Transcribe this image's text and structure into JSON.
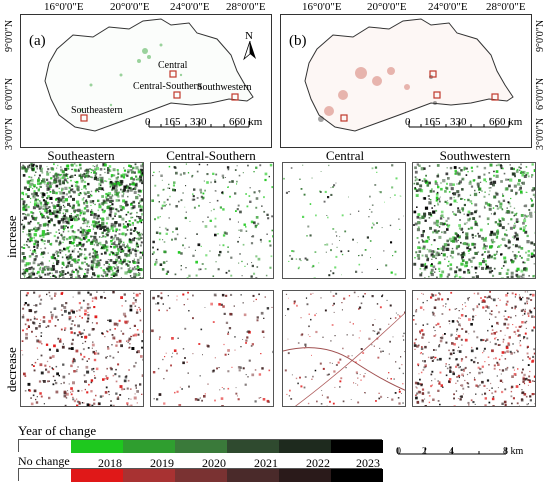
{
  "top_axis_labels": [
    "16°0'0\"E",
    "20°0'0\"E",
    "24°0'0\"E",
    "28°0'0\"E"
  ],
  "left_axis_labels": [
    "9°0'0\"N",
    "6°0'0\"N",
    "3°0'0\"N"
  ],
  "right_axis_labels": [
    "9°0'0\"N",
    "6°0'0\"N",
    "3°0'0\"N"
  ],
  "panel_a": {
    "letter": "(a)",
    "regions": [
      "Central",
      "Central-Southern",
      "Southwestern",
      "Southeastern"
    ]
  },
  "panel_b": {
    "letter": "(b)"
  },
  "north_arrow": "N",
  "scalebar_top": {
    "ticks": [
      "0",
      "165",
      "330",
      "660 km"
    ]
  },
  "columns": [
    "Southeastern",
    "Central-Southern",
    "Central",
    "Southwestern"
  ],
  "rows": [
    "increase",
    "decrease"
  ],
  "legend": {
    "title": "Year of change",
    "no_change": "No change",
    "years": [
      "2018",
      "2019",
      "2020",
      "2021",
      "2022",
      "2023"
    ],
    "increase_colors": [
      "#1ec81e",
      "#2f9e2f",
      "#3a7a3a",
      "#2f4a2f",
      "#1e2a1e",
      "#000000"
    ],
    "decrease_colors": [
      "#e01818",
      "#a83232",
      "#7a3232",
      "#4a2a2a",
      "#2a1a1a",
      "#000000"
    ]
  },
  "scalebar_bottom": {
    "ticks": [
      "0",
      "2",
      "4",
      "8 km"
    ]
  }
}
